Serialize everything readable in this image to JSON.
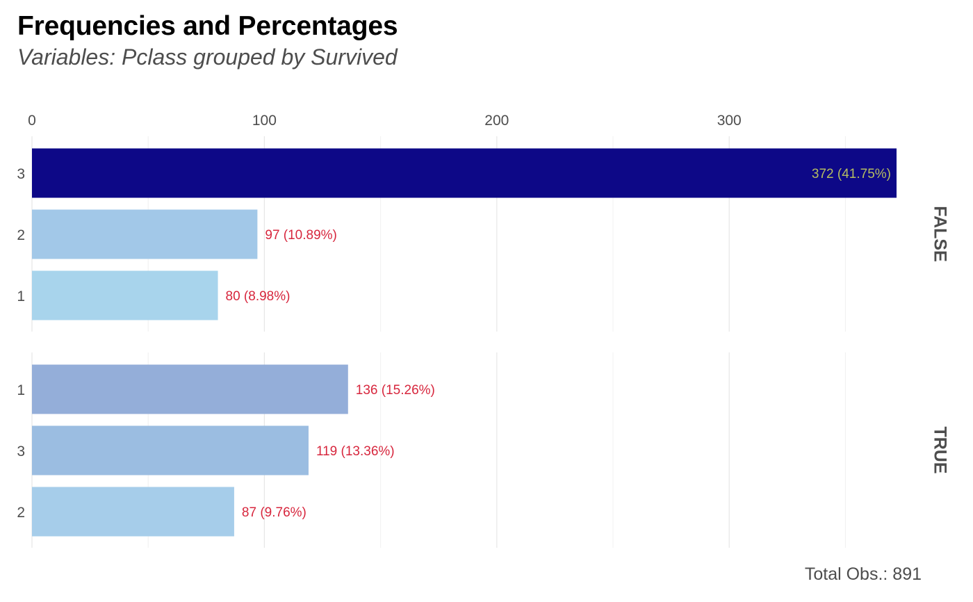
{
  "chart_data": {
    "type": "bar",
    "orientation": "horizontal",
    "title": "Frequencies and Percentages",
    "subtitle": "Variables: Pclass grouped by Survived",
    "caption": "Total Obs.: 891",
    "x_axis_position": "top",
    "xlim": [
      0,
      372
    ],
    "x_ticks": [
      0,
      100,
      200,
      300
    ],
    "grid": true,
    "label_color_inside": "#b5bd61",
    "label_color_outside": "#d7263d",
    "panels": [
      {
        "facet": "FALSE",
        "categories": [
          "3",
          "2",
          "1"
        ],
        "values": [
          372,
          97,
          80
        ],
        "labels": [
          "372 (41.75%)",
          "97 (10.89%)",
          "80 (8.98%)"
        ],
        "colors": [
          "#0d0887",
          "#a2c8e8",
          "#a8d4ec"
        ]
      },
      {
        "facet": "TRUE",
        "categories": [
          "1",
          "3",
          "2"
        ],
        "values": [
          136,
          119,
          87
        ],
        "labels": [
          "136 (15.26%)",
          "119 (13.36%)",
          "87 (9.76%)"
        ],
        "colors": [
          "#94aed9",
          "#9bbde1",
          "#a6cdea"
        ]
      }
    ]
  }
}
